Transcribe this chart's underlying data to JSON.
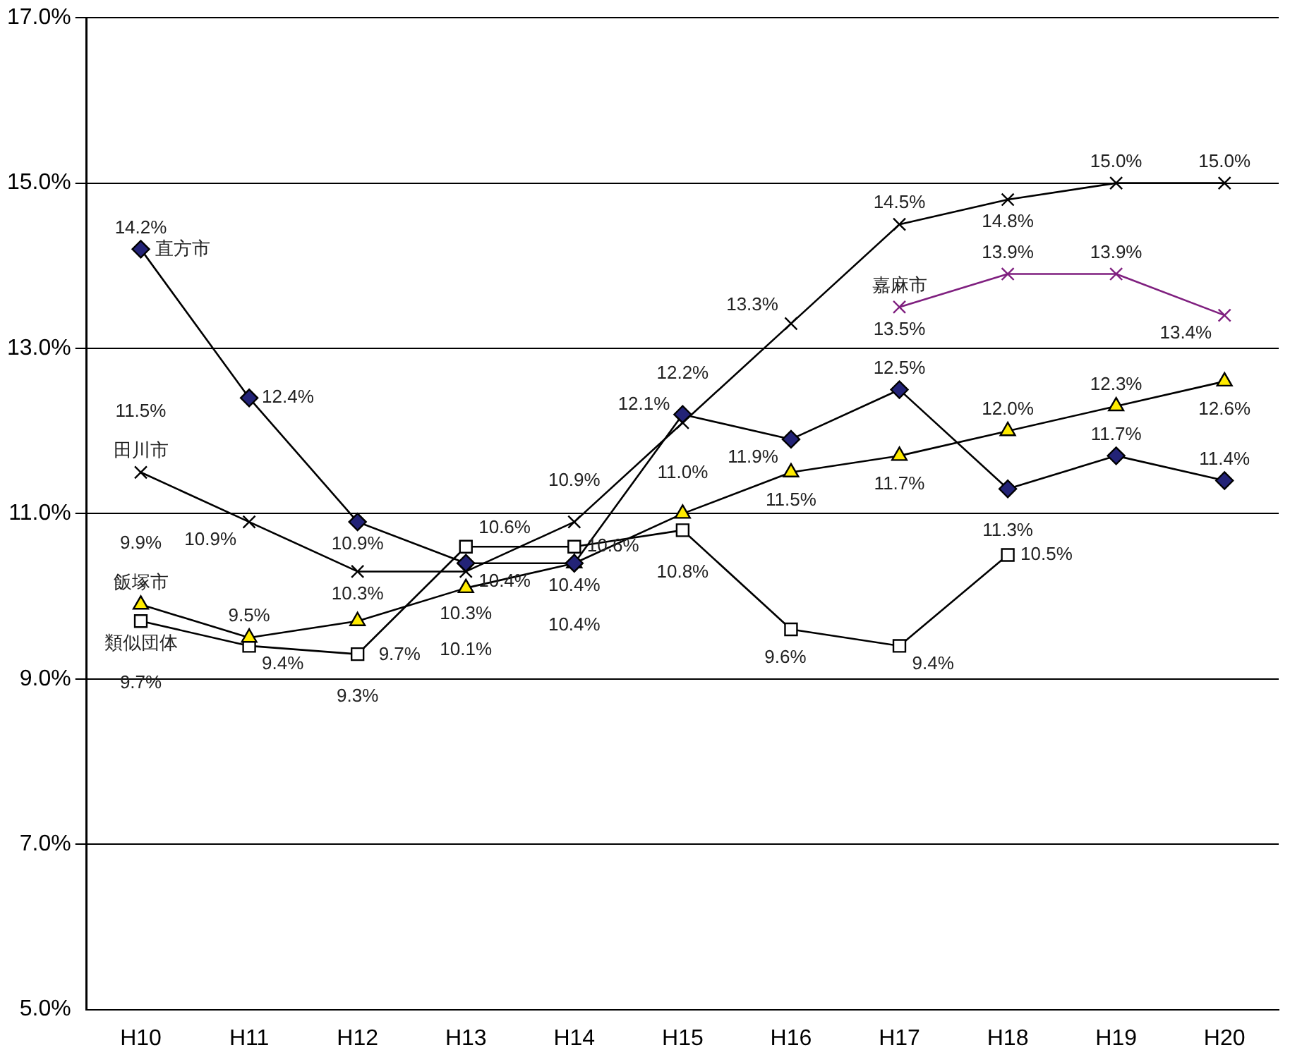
{
  "chart_data": {
    "type": "line",
    "categories": [
      "H10",
      "H11",
      "H12",
      "H13",
      "H14",
      "H15",
      "H16",
      "H17",
      "H18",
      "H19",
      "H20"
    ],
    "ylim": [
      5,
      17
    ],
    "yticks": [
      {
        "value": 5,
        "label": "5.0%"
      },
      {
        "value": 7,
        "label": "7.0%"
      },
      {
        "value": 9,
        "label": "9.0%"
      },
      {
        "value": 11,
        "label": "11.0%"
      },
      {
        "value": 13,
        "label": "13.0%"
      },
      {
        "value": 15,
        "label": "15.0%"
      },
      {
        "value": 17,
        "label": "17.0%"
      }
    ],
    "grid": "y",
    "legend": false,
    "series": [
      {
        "name": "田川市",
        "color": "#000000",
        "marker": "cross",
        "values": [
          11.5,
          10.9,
          10.3,
          10.3,
          10.9,
          12.1,
          13.3,
          14.5,
          14.8,
          15.0,
          15.0
        ],
        "value_labels": [
          "11.5%",
          "10.9%",
          "10.3%",
          "10.3%",
          "10.9%",
          "12.1%",
          "13.3%",
          "14.5%",
          "14.8%",
          "15.0%",
          "15.0%"
        ]
      },
      {
        "name": "直方市",
        "color": "#232377",
        "marker": "diamond",
        "values": [
          14.2,
          12.4,
          10.9,
          10.4,
          10.4,
          12.2,
          11.9,
          12.5,
          11.3,
          11.7,
          11.4
        ],
        "value_labels": [
          "14.2%",
          "12.4%",
          "10.9%",
          "10.4%",
          "10.4%",
          "12.2%",
          "11.9%",
          "12.5%",
          "11.3%",
          "11.7%",
          "11.4%"
        ]
      },
      {
        "name": "飯塚市",
        "color": "#ffeb00",
        "marker": "triangle",
        "values": [
          9.9,
          9.5,
          9.7,
          10.1,
          10.4,
          11.0,
          11.5,
          11.7,
          12.0,
          12.3,
          12.6
        ],
        "value_labels": [
          "9.9%",
          "9.5%",
          "9.7%",
          "10.1%",
          "10.4%",
          "11.0%",
          "11.5%",
          "11.7%",
          "12.0%",
          "12.3%",
          "12.6%"
        ]
      },
      {
        "name": "類似団体",
        "color": "#ffffff",
        "marker": "square",
        "values": [
          9.7,
          9.4,
          9.3,
          10.6,
          10.6,
          10.8,
          9.6,
          9.4,
          10.5,
          null,
          null
        ],
        "value_labels": [
          "9.7%",
          "9.4%",
          "9.3%",
          "10.6%",
          "10.6%",
          "10.8%",
          "9.6%",
          "9.4%",
          "10.5%",
          null,
          null
        ]
      },
      {
        "name": "嘉麻市",
        "color": "#7f1f7f",
        "marker": "cross",
        "values": [
          null,
          null,
          null,
          null,
          null,
          null,
          null,
          13.5,
          13.9,
          13.9,
          13.4
        ],
        "value_labels": [
          null,
          null,
          null,
          null,
          null,
          null,
          null,
          "13.5%",
          "13.9%",
          "13.9%",
          "13.4%"
        ]
      }
    ]
  }
}
